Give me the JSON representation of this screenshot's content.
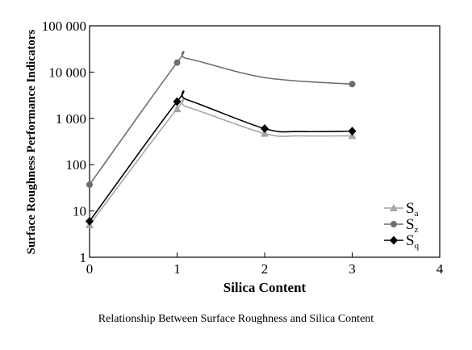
{
  "chart_data": {
    "type": "line",
    "xlabel": "Silica Content",
    "ylabel": "Surface Roughness Performance Indicators",
    "xlim": [
      0,
      4
    ],
    "ylim": [
      1,
      100000
    ],
    "yscale": "log",
    "x_ticks": [
      "0",
      "1",
      "2",
      "3",
      "4"
    ],
    "y_ticks": [
      "1",
      "10",
      "100",
      "1 000",
      "10 000",
      "100 000"
    ],
    "legend_position": "lower-right",
    "series": [
      {
        "name": "S",
        "subscript": "a",
        "color": "#a6a6a6",
        "marker": "triangle",
        "x": [
          0,
          1,
          2,
          3
        ],
        "y": [
          5,
          1600,
          470,
          420
        ]
      },
      {
        "name": "S",
        "subscript": "z",
        "color": "#6e6e6e",
        "marker": "circle",
        "x": [
          0,
          1,
          2,
          3
        ],
        "y": [
          37,
          16000,
          null,
          5500
        ]
      },
      {
        "name": "S",
        "subscript": "q",
        "color": "#000000",
        "marker": "diamond",
        "x": [
          0,
          1,
          2,
          3
        ],
        "y": [
          6,
          2300,
          600,
          530
        ]
      }
    ]
  },
  "caption": "Relationship Between Surface Roughness and Silica Content"
}
